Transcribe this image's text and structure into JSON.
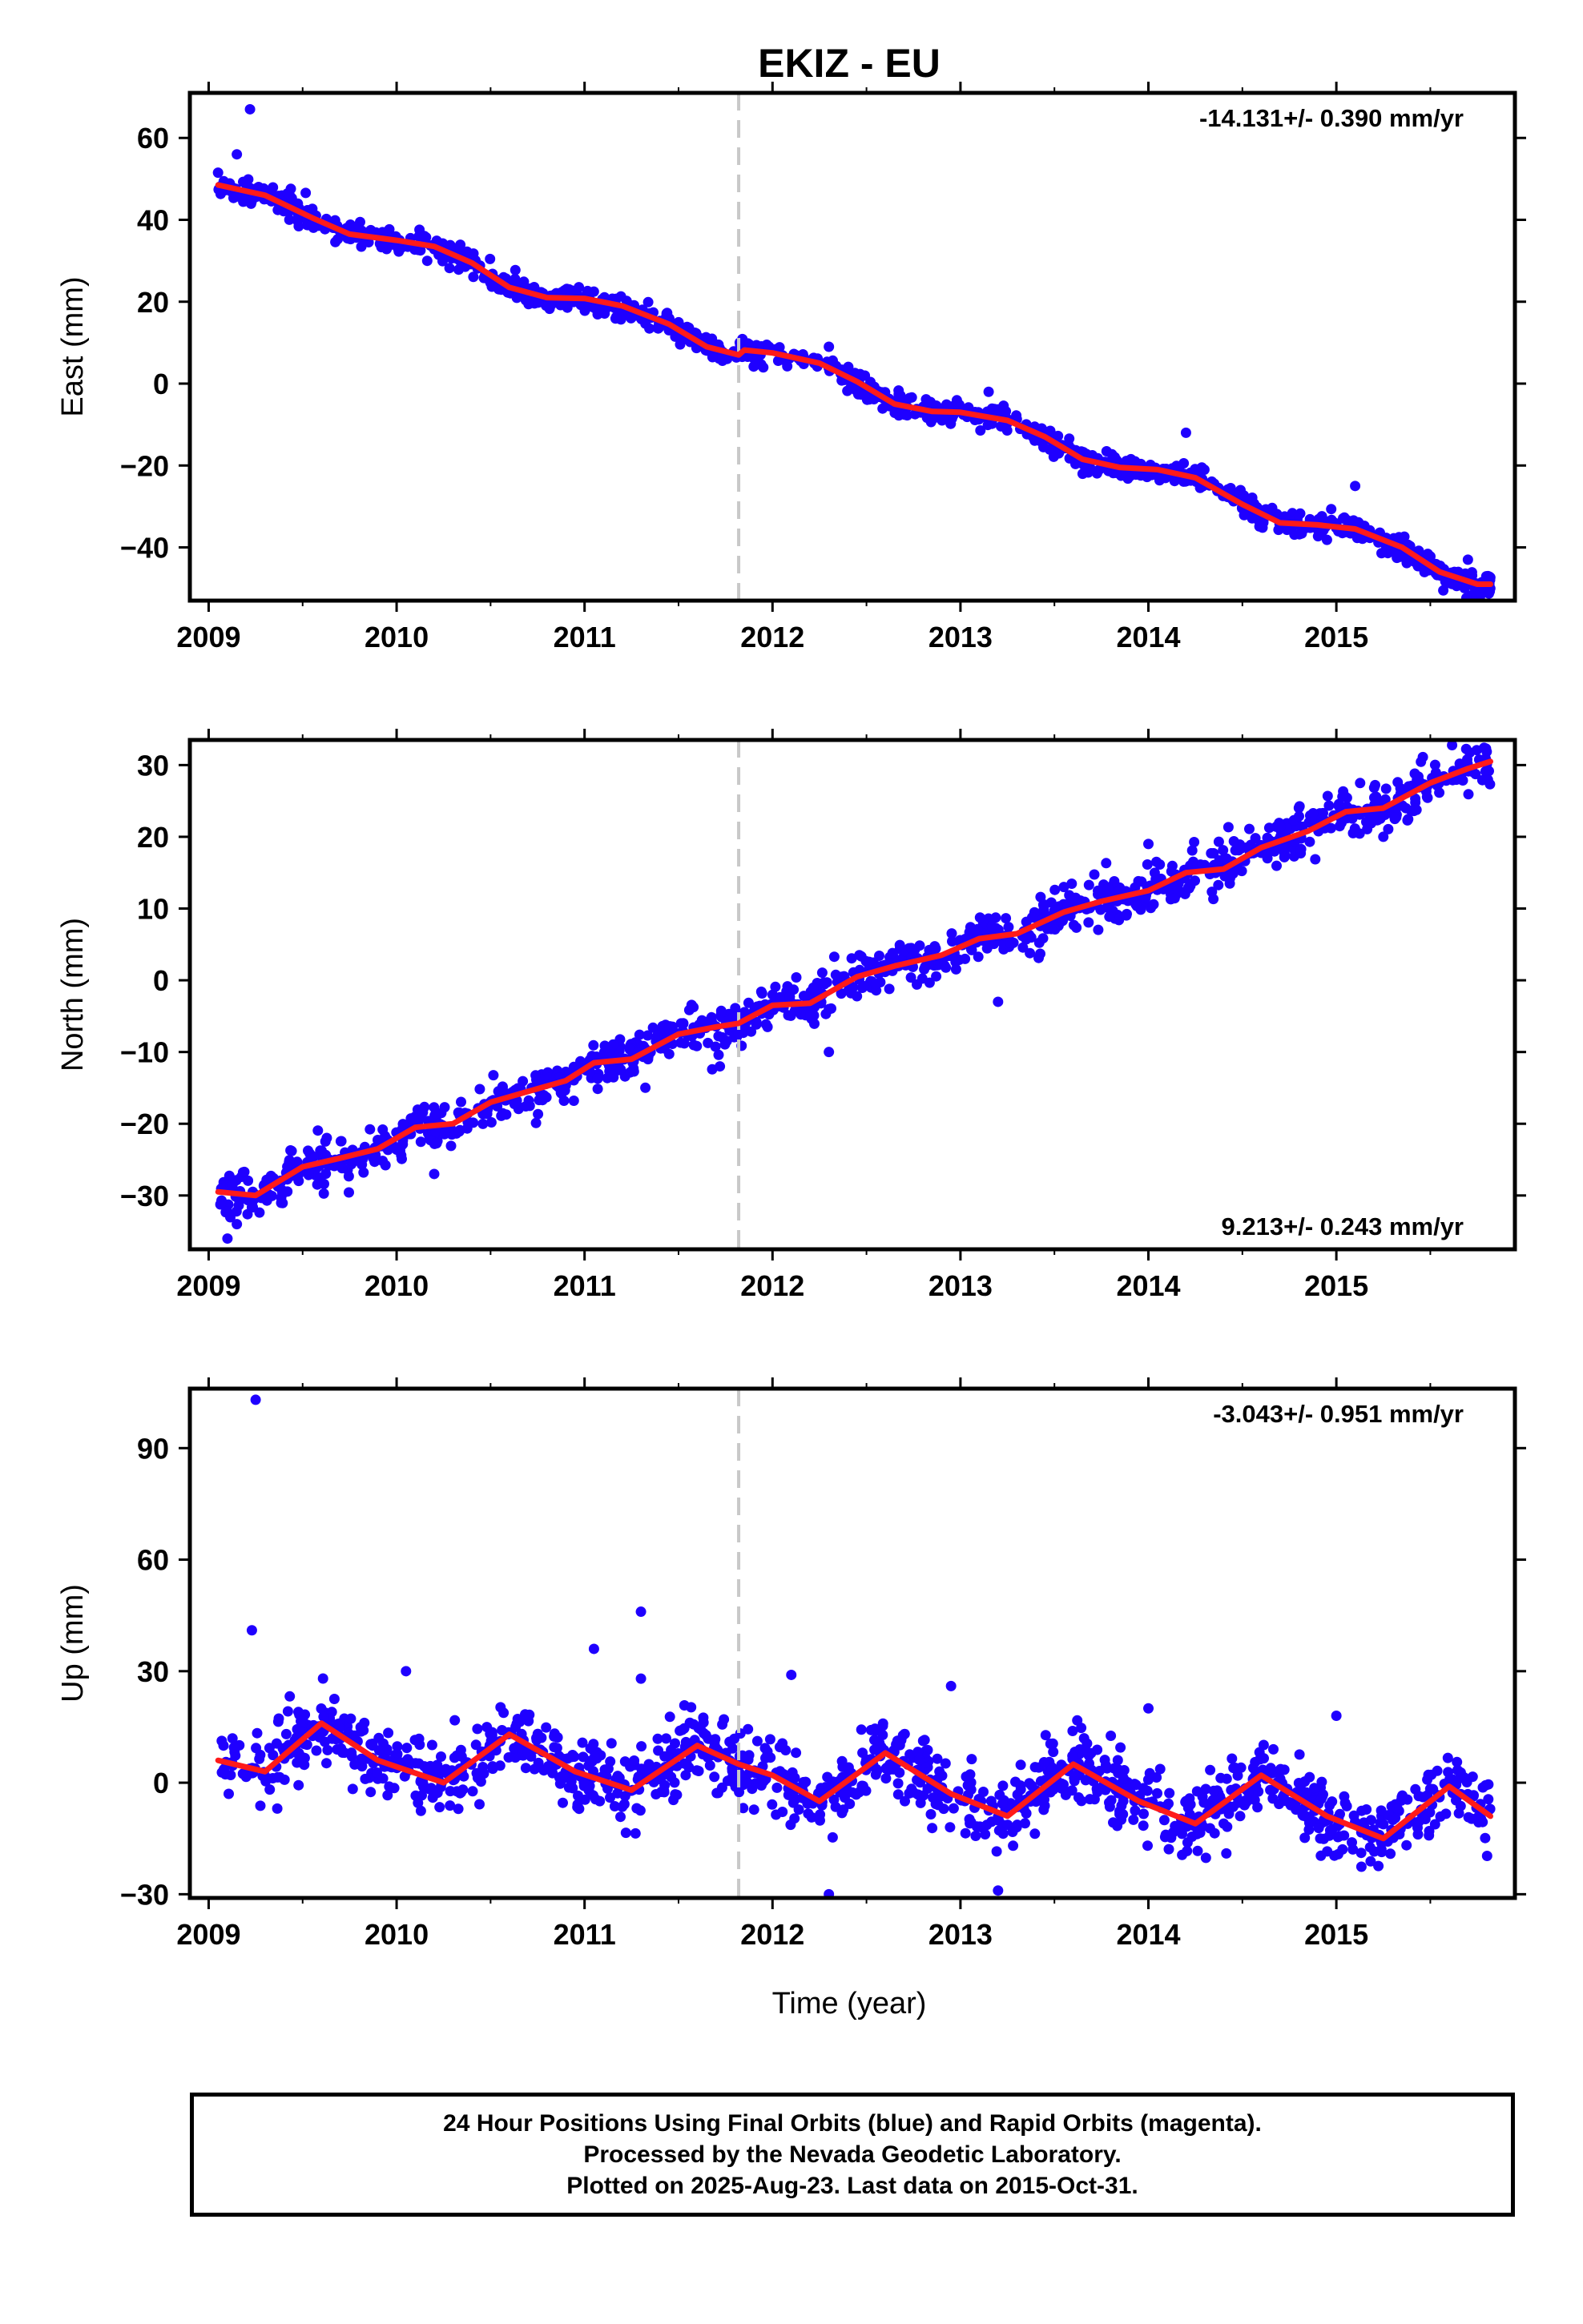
{
  "title": "EKIZ - EU",
  "xlabel": "Time (year)",
  "footer": {
    "line1": "24 Hour Positions Using Final Orbits (blue) and Rapid Orbits (magenta).",
    "line2": "Processed by the Nevada Geodetic Laboratory.",
    "line3": "Plotted on 2025-Aug-23. Last data on 2015-Oct-31."
  },
  "colors": {
    "points": "#1f00ff",
    "fit": "#ff1a1a",
    "break_line": "#c8c8c8",
    "axes": "#000000"
  },
  "chart_data": [
    {
      "type": "scatter",
      "panel": "east",
      "ylabel": "East (mm)",
      "rate_text": "-14.131+/- 0.390 mm/yr",
      "rate_position": "top-right",
      "xlim": [
        2008.9,
        2015.95
      ],
      "ylim": [
        -53,
        71
      ],
      "xticks": [
        2009,
        2010,
        2011,
        2012,
        2013,
        2014,
        2015
      ],
      "yticks": [
        -40,
        -20,
        0,
        20,
        40,
        60
      ],
      "break_x": 2011.82,
      "fit_line": [
        [
          2009.05,
          48.5
        ],
        [
          2009.3,
          46
        ],
        [
          2009.55,
          40.5
        ],
        [
          2009.75,
          36.5
        ],
        [
          2010.0,
          35
        ],
        [
          2010.2,
          33.5
        ],
        [
          2010.4,
          29.5
        ],
        [
          2010.6,
          23.5
        ],
        [
          2010.8,
          21
        ],
        [
          2011.0,
          20.8
        ],
        [
          2011.2,
          19
        ],
        [
          2011.45,
          14.5
        ],
        [
          2011.65,
          9
        ],
        [
          2011.82,
          7
        ],
        [
          2011.85,
          8.2
        ],
        [
          2012.0,
          7.5
        ],
        [
          2012.25,
          5
        ],
        [
          2012.45,
          0.5
        ],
        [
          2012.65,
          -5
        ],
        [
          2012.85,
          -6.8
        ],
        [
          2013.0,
          -7
        ],
        [
          2013.25,
          -9
        ],
        [
          2013.45,
          -13
        ],
        [
          2013.65,
          -18.5
        ],
        [
          2013.85,
          -20.5
        ],
        [
          2014.05,
          -21
        ],
        [
          2014.25,
          -23
        ],
        [
          2014.5,
          -29.5
        ],
        [
          2014.7,
          -34
        ],
        [
          2014.9,
          -34.5
        ],
        [
          2015.1,
          -35.5
        ],
        [
          2015.35,
          -40
        ],
        [
          2015.55,
          -46
        ],
        [
          2015.75,
          -49
        ],
        [
          2015.82,
          -49
        ]
      ],
      "outliers": [
        [
          2009.22,
          67
        ],
        [
          2009.15,
          56
        ],
        [
          2012.3,
          9
        ],
        [
          2013.15,
          -2
        ],
        [
          2014.2,
          -12
        ],
        [
          2015.1,
          -25
        ],
        [
          2015.7,
          -43
        ],
        [
          2011.5,
          15
        ]
      ],
      "scatter_spec": {
        "seed": 11,
        "count": 1150,
        "spread": 1.5,
        "start": 2009.05,
        "end": 2015.82
      }
    },
    {
      "type": "scatter",
      "panel": "north",
      "ylabel": "North (mm)",
      "rate_text": "9.213+/- 0.243 mm/yr",
      "rate_position": "bottom-right",
      "xlim": [
        2008.9,
        2015.95
      ],
      "ylim": [
        -37.5,
        33.5
      ],
      "xticks": [
        2009,
        2010,
        2011,
        2012,
        2013,
        2014,
        2015
      ],
      "yticks": [
        -30,
        -20,
        -10,
        0,
        10,
        20,
        30
      ],
      "break_x": 2011.82,
      "fit_line": [
        [
          2009.05,
          -29.5
        ],
        [
          2009.25,
          -30
        ],
        [
          2009.5,
          -26
        ],
        [
          2009.7,
          -24.8
        ],
        [
          2009.9,
          -23.5
        ],
        [
          2010.1,
          -20.5
        ],
        [
          2010.3,
          -20
        ],
        [
          2010.5,
          -17
        ],
        [
          2010.7,
          -15.5
        ],
        [
          2010.9,
          -14
        ],
        [
          2011.05,
          -11.5
        ],
        [
          2011.25,
          -11
        ],
        [
          2011.5,
          -7.5
        ],
        [
          2011.7,
          -6.5
        ],
        [
          2011.82,
          -6
        ],
        [
          2012.0,
          -3.5
        ],
        [
          2012.2,
          -3.2
        ],
        [
          2012.45,
          0.5
        ],
        [
          2012.65,
          2
        ],
        [
          2012.9,
          3.5
        ],
        [
          2013.1,
          5.8
        ],
        [
          2013.3,
          6.5
        ],
        [
          2013.55,
          9.5
        ],
        [
          2013.75,
          11
        ],
        [
          2014.0,
          12.5
        ],
        [
          2014.2,
          15
        ],
        [
          2014.4,
          15.5
        ],
        [
          2014.6,
          18.5
        ],
        [
          2014.85,
          20.8
        ],
        [
          2015.05,
          23.5
        ],
        [
          2015.25,
          24
        ],
        [
          2015.5,
          27.5
        ],
        [
          2015.7,
          29.5
        ],
        [
          2015.82,
          30.5
        ]
      ],
      "outliers": [
        [
          2009.1,
          -36
        ],
        [
          2009.15,
          -34
        ],
        [
          2010.2,
          -27
        ],
        [
          2011.72,
          -12
        ],
        [
          2012.3,
          -10
        ],
        [
          2013.2,
          -3
        ],
        [
          2015.25,
          20
        ],
        [
          2014.0,
          19
        ],
        [
          2013.55,
          13
        ]
      ],
      "scatter_spec": {
        "seed": 23,
        "count": 1150,
        "spread": 1.6,
        "start": 2009.05,
        "end": 2015.82
      }
    },
    {
      "type": "scatter",
      "panel": "up",
      "ylabel": "Up (mm)",
      "rate_text": "-3.043+/- 0.951 mm/yr",
      "rate_position": "top-right",
      "xlim": [
        2008.9,
        2015.95
      ],
      "ylim": [
        -31,
        106
      ],
      "xticks": [
        2009,
        2010,
        2011,
        2012,
        2013,
        2014,
        2015
      ],
      "yticks": [
        -30,
        0,
        30,
        60,
        90
      ],
      "break_x": 2011.82,
      "fit_line": [
        [
          2009.05,
          6
        ],
        [
          2009.3,
          3
        ],
        [
          2009.6,
          16
        ],
        [
          2009.9,
          6
        ],
        [
          2010.25,
          0
        ],
        [
          2010.6,
          13
        ],
        [
          2010.95,
          3
        ],
        [
          2011.25,
          -2
        ],
        [
          2011.6,
          10
        ],
        [
          2011.82,
          5
        ],
        [
          2012.0,
          2
        ],
        [
          2012.25,
          -5
        ],
        [
          2012.6,
          8
        ],
        [
          2012.95,
          -3
        ],
        [
          2013.25,
          -9
        ],
        [
          2013.6,
          5
        ],
        [
          2013.95,
          -5
        ],
        [
          2014.25,
          -11
        ],
        [
          2014.6,
          2
        ],
        [
          2014.95,
          -9
        ],
        [
          2015.25,
          -15
        ],
        [
          2015.6,
          -1
        ],
        [
          2015.82,
          -9
        ]
      ],
      "outliers": [
        [
          2009.25,
          103
        ],
        [
          2009.23,
          41
        ],
        [
          2011.3,
          46
        ],
        [
          2011.05,
          36
        ],
        [
          2010.05,
          30
        ],
        [
          2012.1,
          29
        ],
        [
          2012.95,
          26
        ],
        [
          2011.3,
          28
        ],
        [
          2012.3,
          -30
        ],
        [
          2013.2,
          -29
        ],
        [
          2015.0,
          18
        ],
        [
          2014.0,
          20
        ]
      ],
      "scatter_spec": {
        "seed": 37,
        "count": 1250,
        "spread": 4.8,
        "start": 2009.05,
        "end": 2015.82
      }
    }
  ]
}
